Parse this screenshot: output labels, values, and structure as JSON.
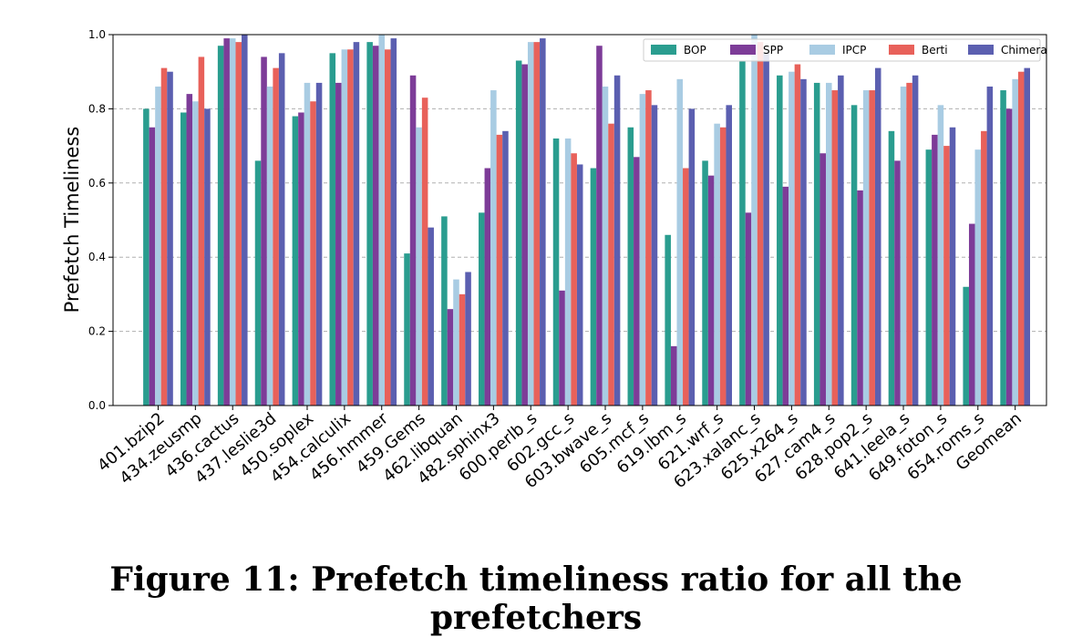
{
  "caption": "Figure 11: Prefetch timeliness ratio for all the prefetchers",
  "chart_data": {
    "type": "bar",
    "ylabel": "Prefetch Timeliness",
    "xlabel": "",
    "ylim": [
      0,
      1
    ],
    "yticks": [
      "0.0",
      "0.2",
      "0.4",
      "0.6",
      "0.8",
      "1.0"
    ],
    "grid": "horizontal dashed",
    "legend_position": "top-right",
    "categories": [
      "401.bzip2",
      "434.zeusmp",
      "436.cactus",
      "437.leslie3d",
      "450.soplex",
      "454.calculix",
      "456.hmmer",
      "459.Gems",
      "462.libquan",
      "482.sphinx3",
      "600.perlb_s",
      "602.gcc_s",
      "603.bwave_s",
      "605.mcf_s",
      "619.lbm_s",
      "621.wrf_s",
      "623.xalanc_s",
      "625.x264_s",
      "627.cam4_s",
      "628.pop2_s",
      "641.leela_s",
      "649.foton_s",
      "654.roms_s",
      "Geomean"
    ],
    "series": [
      {
        "name": "BOP",
        "color": "#2a9d8f",
        "values": [
          0.8,
          0.79,
          0.97,
          0.66,
          0.78,
          0.95,
          0.98,
          0.41,
          0.51,
          0.52,
          0.93,
          0.72,
          0.64,
          0.75,
          0.46,
          0.66,
          0.93,
          0.89,
          0.87,
          0.81,
          0.74,
          0.69,
          0.32,
          0.85
        ]
      },
      {
        "name": "SPP",
        "color": "#7d3c98",
        "values": [
          0.75,
          0.84,
          0.99,
          0.94,
          0.79,
          0.87,
          0.97,
          0.89,
          0.26,
          0.64,
          0.92,
          0.31,
          0.97,
          0.67,
          0.16,
          0.62,
          0.52,
          0.59,
          0.68,
          0.58,
          0.66,
          0.73,
          0.49,
          0.8
        ]
      },
      {
        "name": "IPCP",
        "color": "#a9cce3",
        "values": [
          0.86,
          0.82,
          0.99,
          0.86,
          0.87,
          0.96,
          1.0,
          0.75,
          0.34,
          0.85,
          0.98,
          0.72,
          0.86,
          0.84,
          0.88,
          0.76,
          1.0,
          0.9,
          0.87,
          0.85,
          0.86,
          0.81,
          0.69,
          0.88
        ]
      },
      {
        "name": "Berti",
        "color": "#e8615a",
        "values": [
          0.91,
          0.94,
          0.98,
          0.91,
          0.82,
          0.96,
          0.96,
          0.83,
          0.3,
          0.73,
          0.98,
          0.68,
          0.76,
          0.85,
          0.64,
          0.75,
          0.98,
          0.92,
          0.85,
          0.85,
          0.87,
          0.7,
          0.74,
          0.9
        ]
      },
      {
        "name": "Chimera",
        "color": "#5b5fb0",
        "values": [
          0.9,
          0.8,
          1.0,
          0.95,
          0.87,
          0.98,
          0.99,
          0.48,
          0.36,
          0.74,
          0.99,
          0.65,
          0.89,
          0.81,
          0.8,
          0.81,
          0.95,
          0.88,
          0.89,
          0.91,
          0.89,
          0.75,
          0.86,
          0.91
        ]
      }
    ]
  }
}
